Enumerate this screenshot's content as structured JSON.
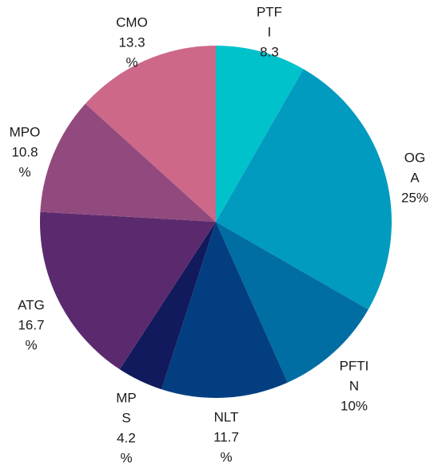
{
  "chart_data": {
    "type": "pie",
    "start": "12 o'clock",
    "direction": "clockwise",
    "slices": [
      {
        "name": "PTFI",
        "value": 8.3,
        "label_lines": [
          "PTF",
          "I",
          "8.3"
        ],
        "color": "#00c2cb"
      },
      {
        "name": "OGA",
        "value": 25,
        "label_lines": [
          "OG",
          "A",
          "25%"
        ],
        "color": "#009bbf"
      },
      {
        "name": "PFTIN",
        "value": 10,
        "label_lines": [
          "PFTI",
          "N",
          "10%"
        ],
        "color": "#006ea3"
      },
      {
        "name": "NLT",
        "value": 11.7,
        "label_lines": [
          "NLT",
          "11.7",
          "%"
        ],
        "color": "#033f80"
      },
      {
        "name": "MPS",
        "value": 4.2,
        "label_lines": [
          "MP",
          "S",
          "4.2",
          "%"
        ],
        "color": "#111a5c"
      },
      {
        "name": "ATG",
        "value": 16.7,
        "label_lines": [
          "ATG",
          "16.7",
          "%"
        ],
        "color": "#5b2a6e"
      },
      {
        "name": "MPO",
        "value": 10.8,
        "label_lines": [
          "MPO",
          "10.8",
          "%"
        ],
        "color": "#924a7e"
      },
      {
        "name": "CMO",
        "value": 13.3,
        "label_lines": [
          "CMO",
          "13.3",
          "%"
        ],
        "color": "#cd6889"
      }
    ]
  }
}
